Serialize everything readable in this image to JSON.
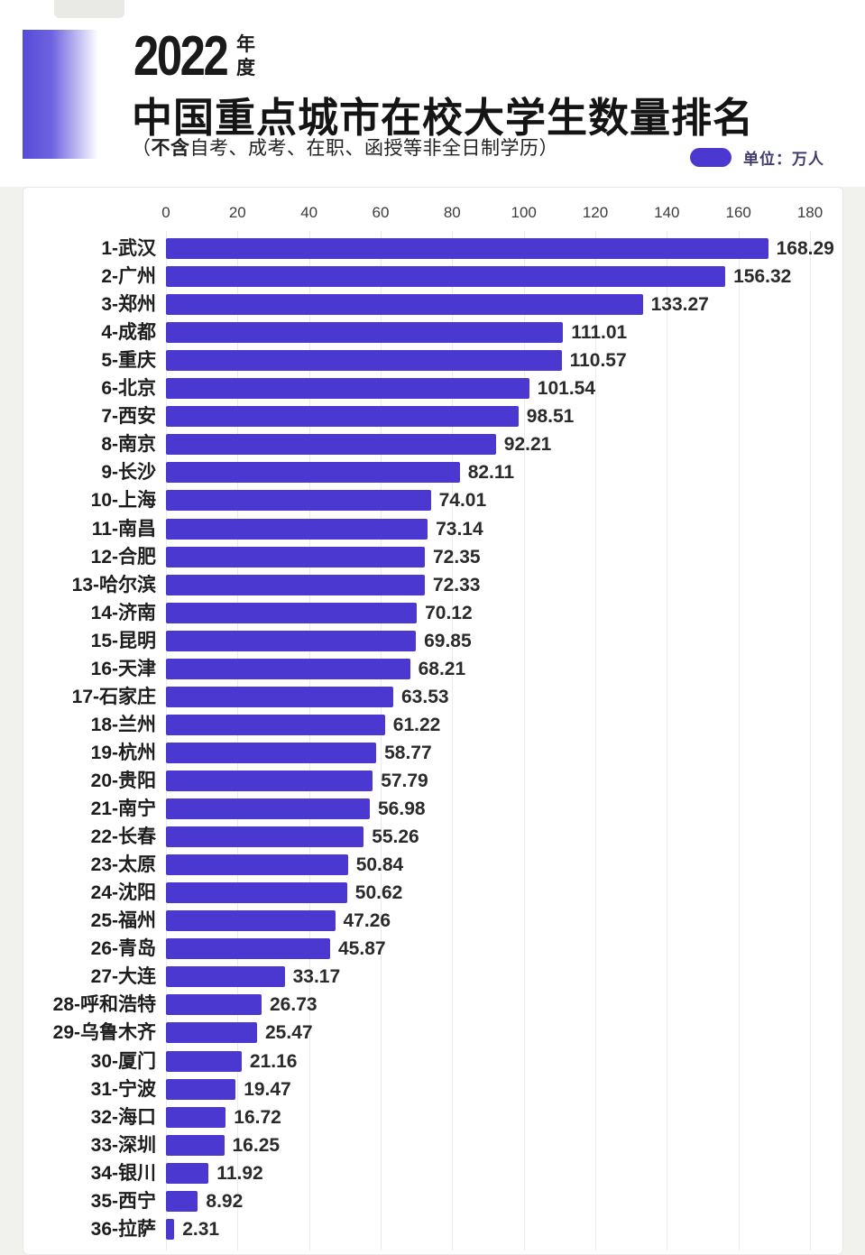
{
  "header": {
    "year": "2022",
    "year_unit_top": "年",
    "year_unit_bottom": "度",
    "title": "中国重点城市在校大学生数量排名",
    "subtitle_open": "（",
    "subtitle_bold": "不含",
    "subtitle_rest": "自考、成考、在职、函授等非全日制学历）",
    "legend_label": "单位：万人"
  },
  "colors": {
    "bar": "#4a38d0",
    "gradient_start": "#564ad8",
    "grid": "#ebebe8",
    "axis_text": "#3c3c3c",
    "label_text": "#1d1d1d",
    "value_text": "#2a2a2a",
    "legend_text": "#3e3b6e"
  },
  "chart_data": {
    "type": "bar",
    "orientation": "horizontal",
    "title": "2022年度 中国重点城市在校大学生数量排名（不含自考、成考、在职、函授等非全日制学历）",
    "unit": "万人",
    "xlim": [
      0,
      180
    ],
    "x_ticks": [
      0,
      20,
      40,
      60,
      80,
      100,
      120,
      140,
      160,
      180
    ],
    "grid": true,
    "categories": [
      "1-武汉",
      "2-广州",
      "3-郑州",
      "4-成都",
      "5-重庆",
      "6-北京",
      "7-西安",
      "8-南京",
      "9-长沙",
      "10-上海",
      "11-南昌",
      "12-合肥",
      "13-哈尔滨",
      "14-济南",
      "15-昆明",
      "16-天津",
      "17-石家庄",
      "18-兰州",
      "19-杭州",
      "20-贵阳",
      "21-南宁",
      "22-长春",
      "23-太原",
      "24-沈阳",
      "25-福州",
      "26-青岛",
      "27-大连",
      "28-呼和浩特",
      "29-乌鲁木齐",
      "30-厦门",
      "31-宁波",
      "32-海口",
      "33-深圳",
      "34-银川",
      "35-西宁",
      "36-拉萨"
    ],
    "values": [
      168.29,
      156.32,
      133.27,
      111.01,
      110.57,
      101.54,
      98.51,
      92.21,
      82.11,
      74.01,
      73.14,
      72.35,
      72.33,
      70.12,
      69.85,
      68.21,
      63.53,
      61.22,
      58.77,
      57.79,
      56.98,
      55.26,
      50.84,
      50.62,
      47.26,
      45.87,
      33.17,
      26.73,
      25.47,
      21.16,
      19.47,
      16.72,
      16.25,
      11.92,
      8.92,
      2.31
    ]
  }
}
